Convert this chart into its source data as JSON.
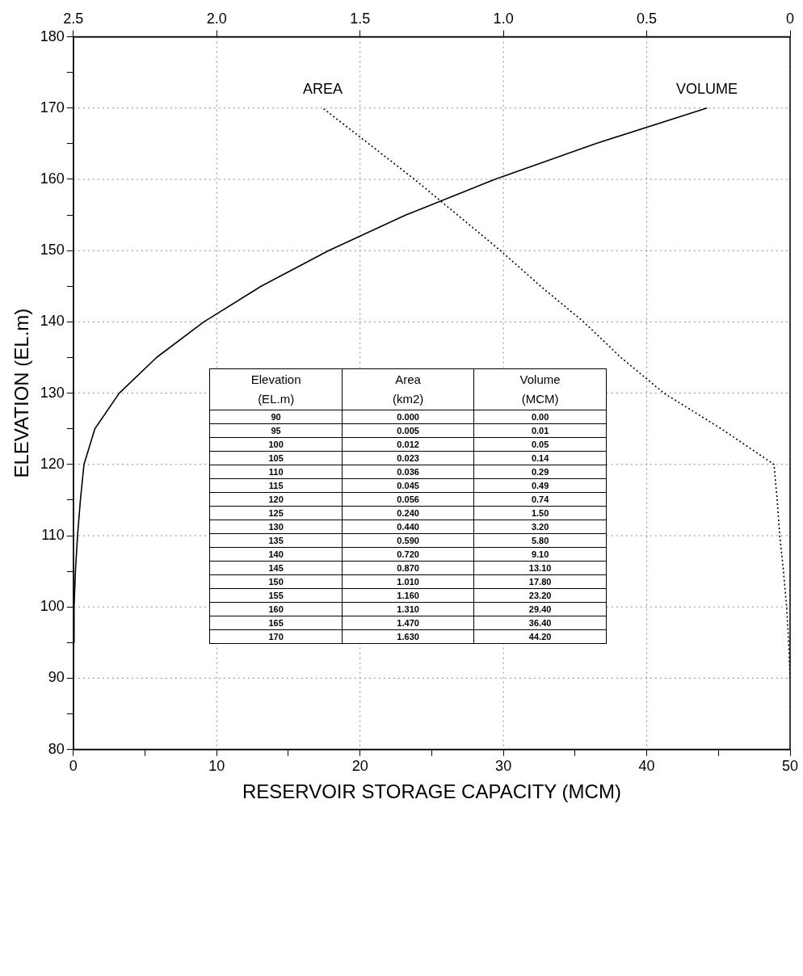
{
  "chart_data": [
    {
      "type": "line",
      "xlabel": "RESERVOIR STORAGE CAPACITY (MCM)",
      "ylabel": "ELEVATION (EL.m)",
      "xlim": [
        0,
        50
      ],
      "xticks": [
        0,
        {
          "value": 5,
          "label": null
        },
        10,
        {
          "value": 15,
          "label": null
        },
        20,
        {
          "value": 25,
          "label": null
        },
        30,
        {
          "value": 35,
          "label": null
        },
        40,
        {
          "value": 45,
          "label": null
        },
        50
      ],
      "x2lim": [
        2.5,
        0
      ],
      "x2ticks": [
        2.5,
        {
          "value": 2,
          "label": "2.0"
        },
        1.5,
        {
          "value": 1,
          "label": "1.0"
        },
        0.5,
        0
      ],
      "ylim": [
        80,
        180
      ],
      "yticks": [
        80,
        {
          "value": 85,
          "label": null
        },
        90,
        {
          "value": 95,
          "label": null
        },
        100,
        {
          "value": 105,
          "label": null
        },
        110,
        {
          "value": 115,
          "label": null
        },
        120,
        {
          "value": 125,
          "label": null
        },
        130,
        {
          "value": 135,
          "label": null
        },
        140,
        {
          "value": 145,
          "label": null
        },
        150,
        {
          "value": 155,
          "label": null
        },
        160,
        {
          "value": 165,
          "label": null
        },
        170,
        {
          "value": 175,
          "label": null
        },
        180
      ],
      "grid": true,
      "legend": false,
      "marker": "none",
      "series": [
        {
          "name": "AREA",
          "color": "#000000",
          "axis": "x2",
          "line_style": "dotted",
          "x": [
            0,
            0.005,
            0.012,
            0.023,
            0.036,
            0.045,
            0.056,
            0.24,
            0.44,
            0.59,
            0.72,
            0.87,
            1.01,
            1.16,
            1.31,
            1.47,
            1.63
          ],
          "values": [
            90,
            95,
            100,
            105,
            110,
            115,
            120,
            125,
            130,
            135,
            140,
            145,
            150,
            155,
            160,
            165,
            170
          ]
        },
        {
          "name": "VOLUME",
          "color": "#000000",
          "line_style": "solid",
          "x": [
            0,
            0.01,
            0.05,
            0.14,
            0.29,
            0.49,
            0.74,
            1.5,
            3.2,
            5.8,
            9.1,
            13.1,
            17.8,
            23.2,
            29.4,
            36.4,
            44.2
          ],
          "values": [
            90,
            95,
            100,
            105,
            110,
            115,
            120,
            125,
            130,
            135,
            140,
            145,
            150,
            155,
            160,
            165,
            170
          ]
        }
      ]
    },
    {
      "type": "heatmap",
      "ylabel": "Elevation (EL.m)",
      "categories": [
        "Area (km2)",
        "Volume (MCM)"
      ],
      "y_categories": [
        "90",
        "95",
        "100",
        "105",
        "110",
        "115",
        "120",
        "125",
        "130",
        "135",
        "140",
        "145",
        "150",
        "155",
        "160",
        "165",
        "170"
      ],
      "cells": [
        [
          0,
          0
        ],
        [
          0.005,
          0.01
        ],
        [
          0.012,
          0.05
        ],
        [
          0.023,
          0.14
        ],
        [
          0.036,
          0.29
        ],
        [
          0.045,
          0.49
        ],
        [
          0.056,
          0.74
        ],
        [
          0.24,
          1.5
        ],
        [
          0.44,
          3.2
        ],
        [
          0.59,
          5.8
        ],
        [
          0.72,
          9.1
        ],
        [
          0.87,
          13.1
        ],
        [
          1.01,
          17.8
        ],
        [
          1.16,
          23.2
        ],
        [
          1.31,
          29.4
        ],
        [
          1.47,
          36.4
        ],
        [
          1.63,
          44.2
        ]
      ],
      "cell_labels": [
        [
          "0.000",
          "0.00"
        ],
        [
          "0.005",
          "0.01"
        ],
        [
          "0.012",
          "0.05"
        ],
        [
          "0.023",
          "0.14"
        ],
        [
          "0.036",
          "0.29"
        ],
        [
          "0.045",
          "0.49"
        ],
        [
          "0.056",
          "0.74"
        ],
        [
          "0.240",
          "1.50"
        ],
        [
          "0.440",
          "3.20"
        ],
        [
          "0.590",
          "5.80"
        ],
        [
          "0.720",
          "9.10"
        ],
        [
          "0.870",
          "13.10"
        ],
        [
          "1.010",
          "17.80"
        ],
        [
          "1.160",
          "23.20"
        ],
        [
          "1.310",
          "29.40"
        ],
        [
          "1.470",
          "36.40"
        ],
        [
          "1.630",
          "44.20"
        ]
      ]
    }
  ]
}
